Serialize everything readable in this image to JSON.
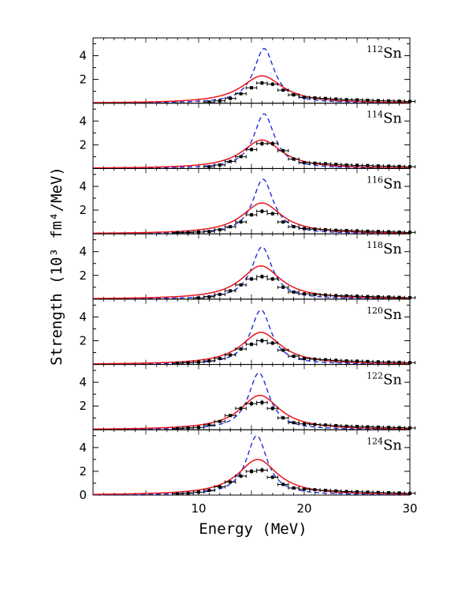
{
  "chart_data": {
    "type": "line",
    "xlabel": "Energy   (MeV)",
    "ylabel": "Strength  (10³  fm⁴/MeV)",
    "xlim": [
      0,
      30
    ],
    "ylim": [
      0,
      5.5
    ],
    "xticks": [
      10,
      20,
      30
    ],
    "yticks_labeled": [
      2,
      4
    ],
    "bottom_yticks_labeled": [
      0,
      2,
      4
    ],
    "series_styles": {
      "theory_solid": "#e8141c",
      "theory_dashed": "#1f2ed6",
      "data": "#000000"
    },
    "panels": [
      {
        "mass": "112",
        "element": "Sn",
        "solid": {
          "E0": 16.0,
          "peak": 2.3,
          "width": 4.8
        },
        "dashed": {
          "E0": 16.2,
          "peak": 4.6,
          "width": 2.4
        },
        "points": {
          "x": [
            11,
            12,
            13,
            14,
            15,
            16,
            17,
            18,
            19,
            20,
            21,
            22,
            23,
            24,
            25,
            26,
            27,
            28,
            29,
            30
          ],
          "y": [
            0.1,
            0.2,
            0.4,
            0.8,
            1.3,
            1.7,
            1.6,
            1.1,
            0.7,
            0.5,
            0.45,
            0.4,
            0.35,
            0.3,
            0.28,
            0.25,
            0.22,
            0.2,
            0.18,
            0.15
          ]
        }
      },
      {
        "mass": "114",
        "element": "Sn",
        "solid": {
          "E0": 16.0,
          "peak": 2.4,
          "width": 4.6
        },
        "dashed": {
          "E0": 16.2,
          "peak": 4.6,
          "width": 2.4
        },
        "points": {
          "x": [
            11,
            12,
            13,
            14,
            15,
            16,
            17,
            18,
            19,
            20,
            21,
            22,
            23,
            24,
            25,
            26,
            27,
            28,
            29,
            30
          ],
          "y": [
            0.15,
            0.3,
            0.6,
            1.0,
            1.6,
            2.1,
            2.1,
            1.5,
            0.8,
            0.5,
            0.45,
            0.4,
            0.35,
            0.3,
            0.27,
            0.25,
            0.22,
            0.2,
            0.18,
            0.15
          ]
        }
      },
      {
        "mass": "116",
        "element": "Sn",
        "solid": {
          "E0": 16.0,
          "peak": 2.6,
          "width": 4.6
        },
        "dashed": {
          "E0": 16.1,
          "peak": 4.6,
          "width": 2.4
        },
        "points": {
          "x": [
            8,
            9,
            10,
            11,
            12,
            13,
            14,
            15,
            16,
            17,
            18,
            19,
            20,
            21,
            22,
            23,
            24,
            25,
            26,
            27,
            28,
            29,
            30
          ],
          "y": [
            0.1,
            0.1,
            0.15,
            0.2,
            0.35,
            0.6,
            1.0,
            1.6,
            1.9,
            1.7,
            1.0,
            0.6,
            0.45,
            0.4,
            0.35,
            0.3,
            0.28,
            0.25,
            0.22,
            0.2,
            0.18,
            0.15,
            0.12
          ]
        }
      },
      {
        "mass": "118",
        "element": "Sn",
        "solid": {
          "E0": 15.9,
          "peak": 2.8,
          "width": 4.6
        },
        "dashed": {
          "E0": 16.0,
          "peak": 4.4,
          "width": 2.4
        },
        "points": {
          "x": [
            10,
            11,
            12,
            13,
            14,
            15,
            16,
            17,
            18,
            19,
            20,
            21,
            22,
            23,
            24,
            25,
            26,
            27,
            28,
            29,
            30
          ],
          "y": [
            0.1,
            0.2,
            0.4,
            0.7,
            1.2,
            1.7,
            1.9,
            1.7,
            1.0,
            0.6,
            0.45,
            0.4,
            0.35,
            0.3,
            0.28,
            0.25,
            0.22,
            0.2,
            0.18,
            0.15,
            0.12
          ]
        }
      },
      {
        "mass": "120",
        "element": "Sn",
        "solid": {
          "E0": 15.9,
          "peak": 2.7,
          "width": 4.6
        },
        "dashed": {
          "E0": 15.9,
          "peak": 4.6,
          "width": 2.4
        },
        "points": {
          "x": [
            8,
            9,
            10,
            11,
            12,
            13,
            14,
            15,
            16,
            17,
            18,
            19,
            20,
            21,
            22,
            23,
            24,
            25,
            26,
            27,
            28,
            29,
            30
          ],
          "y": [
            0.1,
            0.15,
            0.2,
            0.3,
            0.5,
            0.8,
            1.3,
            1.7,
            2.0,
            1.8,
            1.2,
            0.7,
            0.5,
            0.45,
            0.4,
            0.35,
            0.3,
            0.28,
            0.25,
            0.22,
            0.2,
            0.18,
            0.15
          ]
        }
      },
      {
        "mass": "122",
        "element": "Sn",
        "solid": {
          "E0": 15.8,
          "peak": 2.9,
          "width": 4.6
        },
        "dashed": {
          "E0": 15.7,
          "peak": 4.8,
          "width": 2.4
        },
        "points": {
          "x": [
            8,
            9,
            10,
            11,
            12,
            13,
            14,
            15,
            16,
            17,
            18,
            19,
            20,
            21,
            22,
            23,
            24,
            25,
            26,
            27,
            28,
            29,
            30
          ],
          "y": [
            0.1,
            0.15,
            0.2,
            0.4,
            0.7,
            1.2,
            1.8,
            2.2,
            2.3,
            1.8,
            1.0,
            0.6,
            0.5,
            0.45,
            0.4,
            0.35,
            0.3,
            0.28,
            0.25,
            0.22,
            0.2,
            0.18,
            0.15
          ]
        }
      },
      {
        "mass": "124",
        "element": "Sn",
        "solid": {
          "E0": 15.6,
          "peak": 3.0,
          "width": 4.6
        },
        "dashed": {
          "E0": 15.5,
          "peak": 5.0,
          "width": 2.4
        },
        "points": {
          "x": [
            8,
            9,
            10,
            11,
            12,
            13,
            14,
            15,
            16,
            17,
            18,
            19,
            20,
            21,
            22,
            23,
            24,
            25,
            26,
            27,
            28,
            29,
            30
          ],
          "y": [
            0.1,
            0.15,
            0.25,
            0.4,
            0.7,
            1.1,
            1.6,
            2.0,
            2.1,
            1.5,
            0.9,
            0.6,
            0.5,
            0.45,
            0.4,
            0.35,
            0.3,
            0.28,
            0.25,
            0.22,
            0.2,
            0.18,
            0.15
          ]
        }
      }
    ]
  }
}
